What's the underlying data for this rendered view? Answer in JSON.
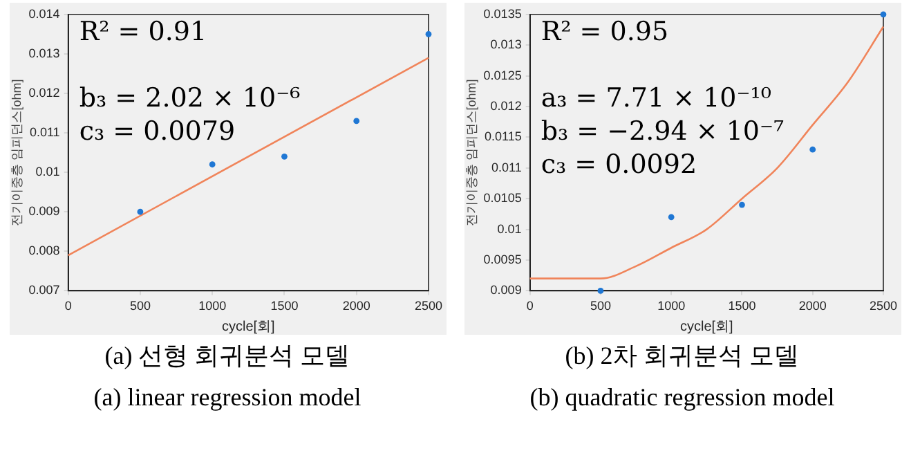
{
  "chart_data": [
    {
      "type": "scatter",
      "title": "(a) 선형 회귀분석 모델",
      "subtitle": "(a) linear regression model",
      "xlabel": "cycle[회]",
      "ylabel": "전기이중층 임피던스[ohm]",
      "xlim": [
        0,
        2500
      ],
      "xticks": [
        0,
        500,
        1000,
        1500,
        2000,
        2500
      ],
      "ylim": [
        0.007,
        0.014
      ],
      "yticks": [
        0.007,
        0.008,
        0.009,
        0.01,
        0.011,
        0.012,
        0.013,
        0.014
      ],
      "grid": false,
      "legend": false,
      "marker": "circle",
      "annotations": [
        "R² = 0.91",
        "b₃ = 2.02 × 10⁻⁶",
        "c₃ = 0.0079"
      ],
      "series": [
        {
          "color": "#1f77d4",
          "x": [
            500,
            1000,
            1500,
            2000,
            2500
          ],
          "values": [
            0.009,
            0.0102,
            0.0104,
            0.0113,
            0.0135
          ]
        },
        {
          "type": "line",
          "color": "#f0845a",
          "marker": "none",
          "x": [
            0,
            2500
          ],
          "values": [
            0.0079,
            0.0129
          ]
        }
      ]
    },
    {
      "type": "scatter",
      "title": "(b) 2차 회귀분석 모델",
      "subtitle": "(b) quadratic regression model",
      "xlabel": "cycle[회]",
      "ylabel": "전기이중층 임피던스[ohm]",
      "xlim": [
        0,
        2500
      ],
      "xticks": [
        0,
        500,
        1000,
        1500,
        2000,
        2500
      ],
      "ylim": [
        0.009,
        0.0135
      ],
      "yticks": [
        0.009,
        0.0095,
        0.01,
        0.0105,
        0.011,
        0.0115,
        0.012,
        0.0125,
        0.013,
        0.0135
      ],
      "grid": false,
      "legend": false,
      "marker": "circle",
      "annotations": [
        "R² = 0.95",
        "a₃ = 7.71 × 10⁻¹⁰",
        "b₃ = −2.94 × 10⁻⁷",
        "c₃ = 0.0092"
      ],
      "series": [
        {
          "color": "#1f77d4",
          "x": [
            500,
            1000,
            1500,
            2000,
            2500
          ],
          "values": [
            0.009,
            0.0102,
            0.0104,
            0.0113,
            0.0135
          ]
        },
        {
          "type": "line",
          "color": "#f0845a",
          "marker": "none",
          "x": [
            0,
            250,
            500,
            750,
            1000,
            1250,
            1500,
            1750,
            2000,
            2250,
            2500
          ],
          "values": [
            0.0092,
            0.0092,
            0.0092,
            0.0094,
            0.0097,
            0.01,
            0.0105,
            0.011,
            0.0117,
            0.0124,
            0.0133
          ]
        }
      ]
    }
  ]
}
